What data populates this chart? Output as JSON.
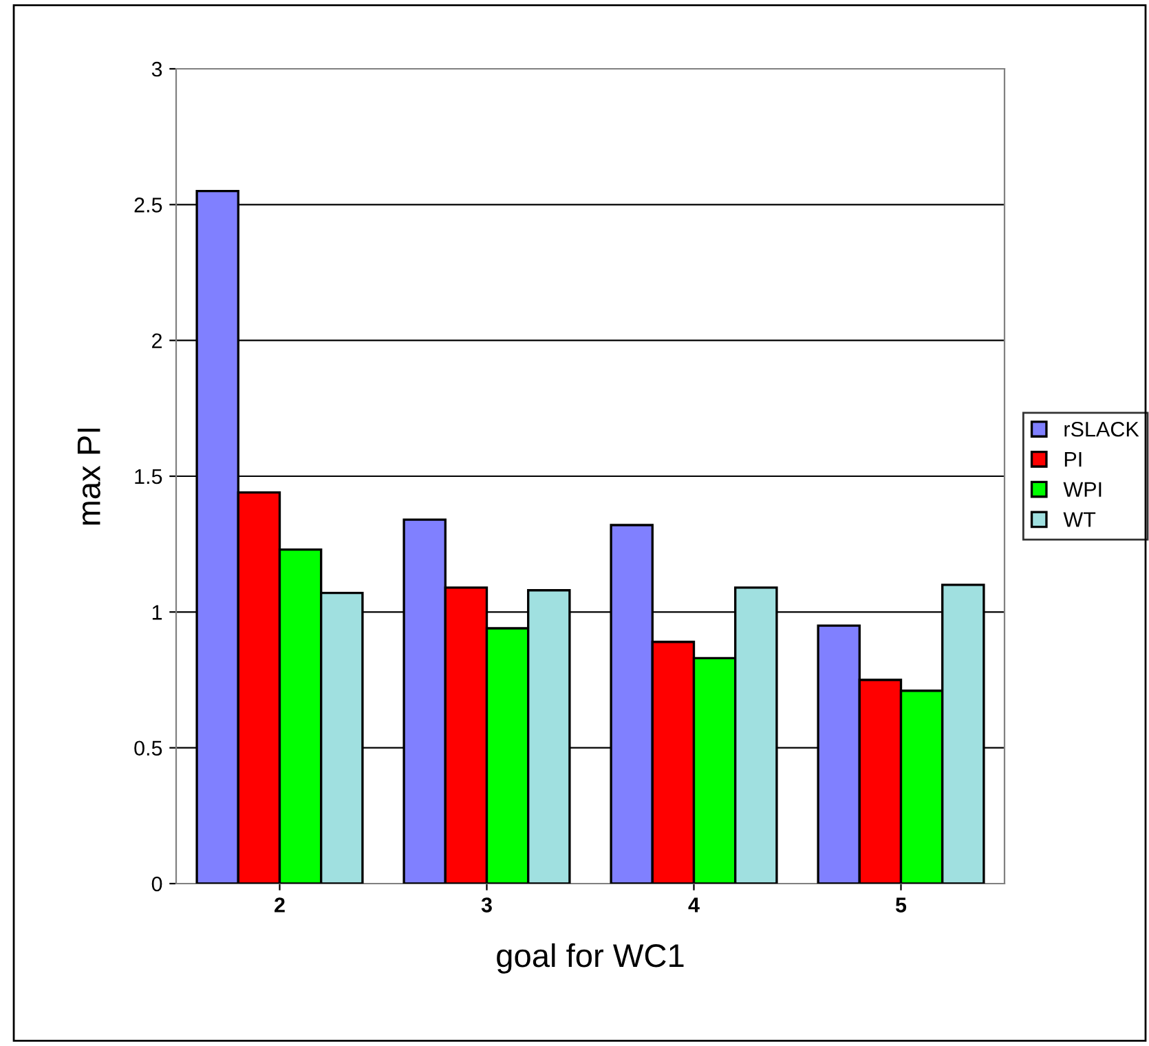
{
  "chart_data": {
    "type": "bar",
    "xlabel": "goal for WC1",
    "ylabel": "max PI",
    "categories": [
      "2",
      "3",
      "4",
      "5"
    ],
    "series": [
      {
        "name": "rSLACK",
        "color": "#8080ff",
        "values": [
          2.55,
          1.34,
          1.32,
          0.95
        ]
      },
      {
        "name": "PI",
        "color": "#ff0000",
        "values": [
          1.44,
          1.09,
          0.89,
          0.75
        ]
      },
      {
        "name": "WPI",
        "color": "#00ff00",
        "values": [
          1.23,
          0.94,
          0.83,
          0.71
        ]
      },
      {
        "name": "WT",
        "color": "#a0e0e0",
        "values": [
          1.07,
          1.08,
          1.09,
          1.1
        ]
      }
    ],
    "ylim": [
      0,
      3
    ],
    "yticks": [
      0,
      0.5,
      1,
      1.5,
      2,
      2.5,
      3
    ],
    "grid": "y",
    "legend": "right"
  }
}
